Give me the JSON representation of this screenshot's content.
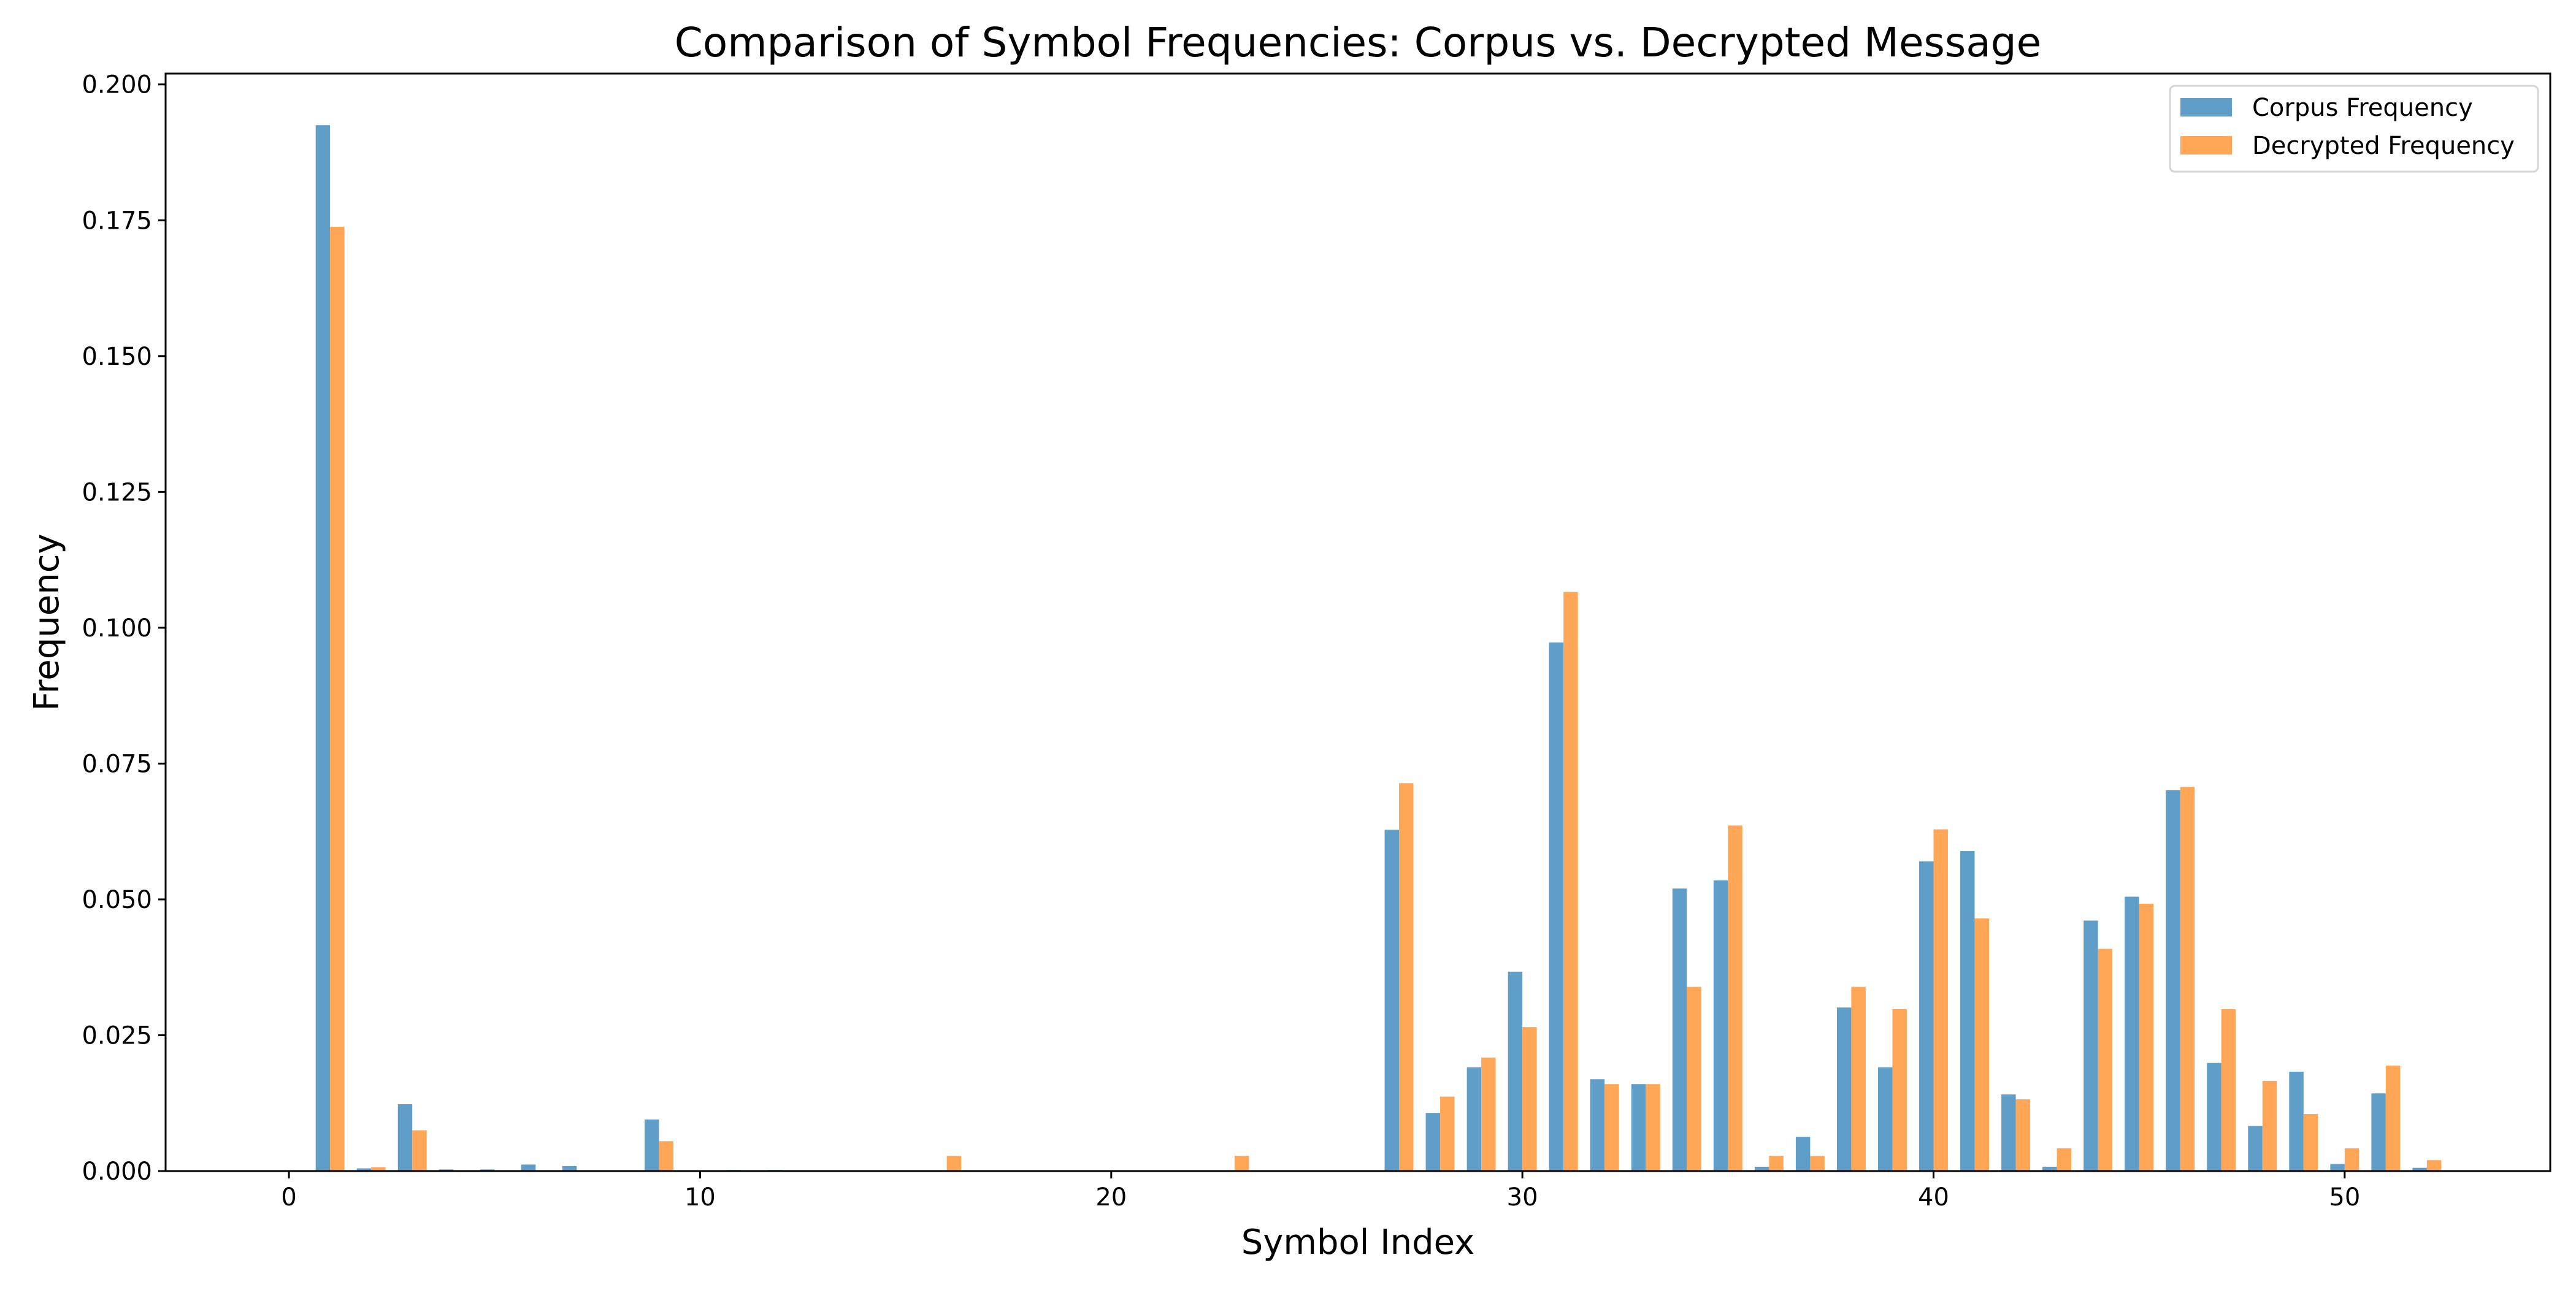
{
  "chart_data": {
    "type": "bar",
    "title": "Comparison of Symbol Frequencies: Corpus vs. Decrypted Message",
    "xlabel": "Symbol Index",
    "ylabel": "Frequency",
    "x": [
      0,
      1,
      2,
      3,
      4,
      5,
      6,
      7,
      8,
      9,
      10,
      11,
      12,
      13,
      14,
      15,
      16,
      17,
      18,
      19,
      20,
      21,
      22,
      23,
      24,
      25,
      26,
      27,
      28,
      29,
      30,
      31,
      32,
      33,
      34,
      35,
      36,
      37,
      38,
      39,
      40,
      41,
      42,
      43,
      44,
      45,
      46,
      47,
      48,
      49,
      50,
      51,
      52
    ],
    "xlim": [
      -3,
      55
    ],
    "ylim": [
      0,
      0.202
    ],
    "xticks": [
      0,
      10,
      20,
      30,
      40,
      50
    ],
    "xtick_labels": [
      "0",
      "10",
      "20",
      "30",
      "40",
      "50"
    ],
    "yticks": [
      0,
      0.025,
      0.05,
      0.075,
      0.1,
      0.125,
      0.15,
      0.175,
      0.2
    ],
    "ytick_labels": [
      "0.000",
      "0.025",
      "0.050",
      "0.075",
      "0.100",
      "0.125",
      "0.150",
      "0.175",
      "0.200"
    ],
    "grid": false,
    "legend_position": "top-right",
    "series": [
      {
        "name": "Corpus Frequency",
        "color": "#5f9ec9",
        "values": [
          0,
          0.1925,
          0.0005,
          0.0123,
          0.0003,
          0.0003,
          0.0012,
          0.0009,
          0,
          0.0095,
          0,
          0.0002,
          0.0002,
          0.0001,
          0,
          0,
          0,
          0,
          0,
          0,
          0,
          0,
          0,
          0,
          0,
          0,
          0,
          0.0628,
          0.0107,
          0.0191,
          0.0367,
          0.0973,
          0.0169,
          0.016,
          0.052,
          0.0535,
          0.0008,
          0.0063,
          0.0301,
          0.0191,
          0.057,
          0.0589,
          0.0141,
          0.0008,
          0.0461,
          0.0505,
          0.0701,
          0.0199,
          0.0083,
          0.0183,
          0.0013,
          0.0143,
          0.0006
        ]
      },
      {
        "name": "Decrypted Frequency",
        "color": "#ffa756",
        "values": [
          0,
          0.1738,
          0.0007,
          0.0075,
          0,
          0,
          0,
          0,
          0,
          0.0055,
          0,
          0,
          0,
          0,
          0,
          0,
          0.0028,
          0,
          0,
          0,
          0,
          0,
          0,
          0.0028,
          0,
          0,
          0,
          0.0714,
          0.0137,
          0.0209,
          0.0265,
          0.1066,
          0.016,
          0.016,
          0.0339,
          0.0636,
          0.0028,
          0.0028,
          0.0339,
          0.0298,
          0.0629,
          0.0465,
          0.0132,
          0.0042,
          0.0409,
          0.0492,
          0.0707,
          0.0298,
          0.0166,
          0.0105,
          0.0042,
          0.0194,
          0.002
        ]
      }
    ]
  }
}
